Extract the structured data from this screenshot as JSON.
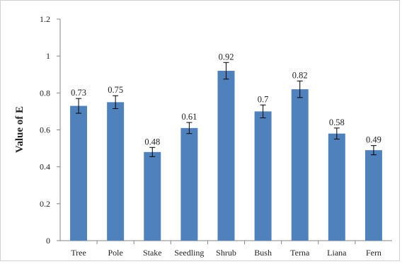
{
  "chart_data": {
    "type": "bar",
    "categories": [
      "Tree",
      "Pole",
      "Stake",
      "Seedling",
      "Shrub",
      "Bush",
      "Terna",
      "Liana",
      "Fern"
    ],
    "values": [
      0.73,
      0.75,
      0.48,
      0.61,
      0.92,
      0.7,
      0.82,
      0.58,
      0.49
    ],
    "value_labels": [
      "0.73",
      "0.75",
      "0.48",
      "0.61",
      "0.92",
      "0.7",
      "0.82",
      "0.58",
      "0.49"
    ],
    "error": [
      0.04,
      0.035,
      0.025,
      0.03,
      0.045,
      0.035,
      0.045,
      0.03,
      0.025
    ],
    "ylabel": "Value of E",
    "xlabel": "",
    "ylim": [
      0,
      1.2
    ],
    "yticks": [
      0,
      0.2,
      0.4,
      0.6,
      0.8,
      1,
      1.2
    ],
    "ytick_labels": [
      "0",
      "0.2",
      "0.4",
      "0.6",
      "0.8",
      "1",
      "1.2"
    ],
    "grid": false,
    "legend": "none",
    "colors": {
      "bar": "#4f81bd",
      "axis": "#868686",
      "error": "#000000"
    }
  }
}
